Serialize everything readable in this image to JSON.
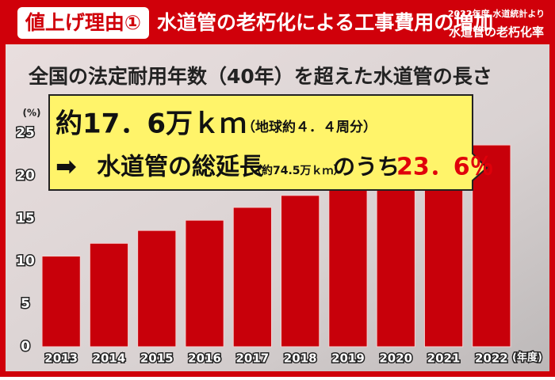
{
  "header": {
    "tag": "値上げ理由①",
    "title": "水道管の老朽化による工事費用の増加",
    "source": "2022年度 水道統計より",
    "topic": "水道管の老朽化率"
  },
  "chart_data": {
    "type": "bar",
    "title": "全国の法定耐用年数（40年）を超えた水道管の長さ",
    "y_unit": "(%)",
    "x_unit": "(年度)",
    "categories": [
      "2013",
      "2014",
      "2015",
      "2016",
      "2017",
      "2018",
      "2019",
      "2020",
      "2021",
      "2022"
    ],
    "values": [
      10.6,
      12.1,
      13.6,
      14.8,
      16.3,
      17.7,
      19.1,
      20.6,
      22.1,
      23.6
    ],
    "color": "#c8000a",
    "ylim": [
      0,
      25
    ],
    "yticks": [
      0,
      5,
      10,
      15,
      20,
      25
    ],
    "annotations": {
      "length": "約17．6万ｋｍ",
      "length_note": "（地球約４．４周分）",
      "arrow": "➡",
      "total_label": "水道管の総延長",
      "total_note": "（約74.5万ｋｍ）",
      "of": "のうち",
      "rate": "23．6％"
    }
  }
}
